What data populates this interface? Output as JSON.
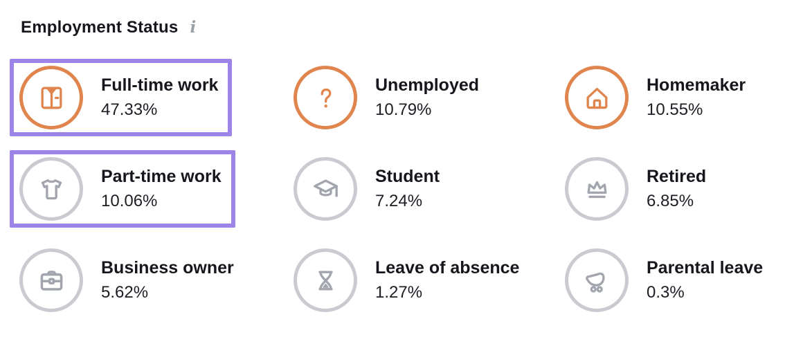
{
  "header": {
    "title": "Employment Status",
    "info_icon": "i"
  },
  "colors": {
    "accent_orange": "#e0854e",
    "selection_purple": "#9d84e8",
    "gray_ring": "#c9cbd0",
    "gray_icon": "#a2a5ad",
    "text_dark": "#15171c"
  },
  "items": [
    {
      "label": "Full-time work",
      "value": "47.33%",
      "icon": "shirt-icon",
      "accent": "orange",
      "selected": true
    },
    {
      "label": "Unemployed",
      "value": "10.79%",
      "icon": "question-mark-icon",
      "accent": "orange",
      "selected": false
    },
    {
      "label": "Homemaker",
      "value": "10.55%",
      "icon": "house-icon",
      "accent": "orange",
      "selected": false
    },
    {
      "label": "Part-time work",
      "value": "10.06%",
      "icon": "tshirt-icon",
      "accent": "gray",
      "selected": true
    },
    {
      "label": "Student",
      "value": "7.24%",
      "icon": "graduation-cap-icon",
      "accent": "gray",
      "selected": false
    },
    {
      "label": "Retired",
      "value": "6.85%",
      "icon": "crown-icon",
      "accent": "gray",
      "selected": false
    },
    {
      "label": "Business owner",
      "value": "5.62%",
      "icon": "briefcase-icon",
      "accent": "gray",
      "selected": false
    },
    {
      "label": "Leave of absence",
      "value": "1.27%",
      "icon": "hourglass-icon",
      "accent": "gray",
      "selected": false
    },
    {
      "label": "Parental leave",
      "value": "0.3%",
      "icon": "stroller-icon",
      "accent": "gray",
      "selected": false
    }
  ]
}
